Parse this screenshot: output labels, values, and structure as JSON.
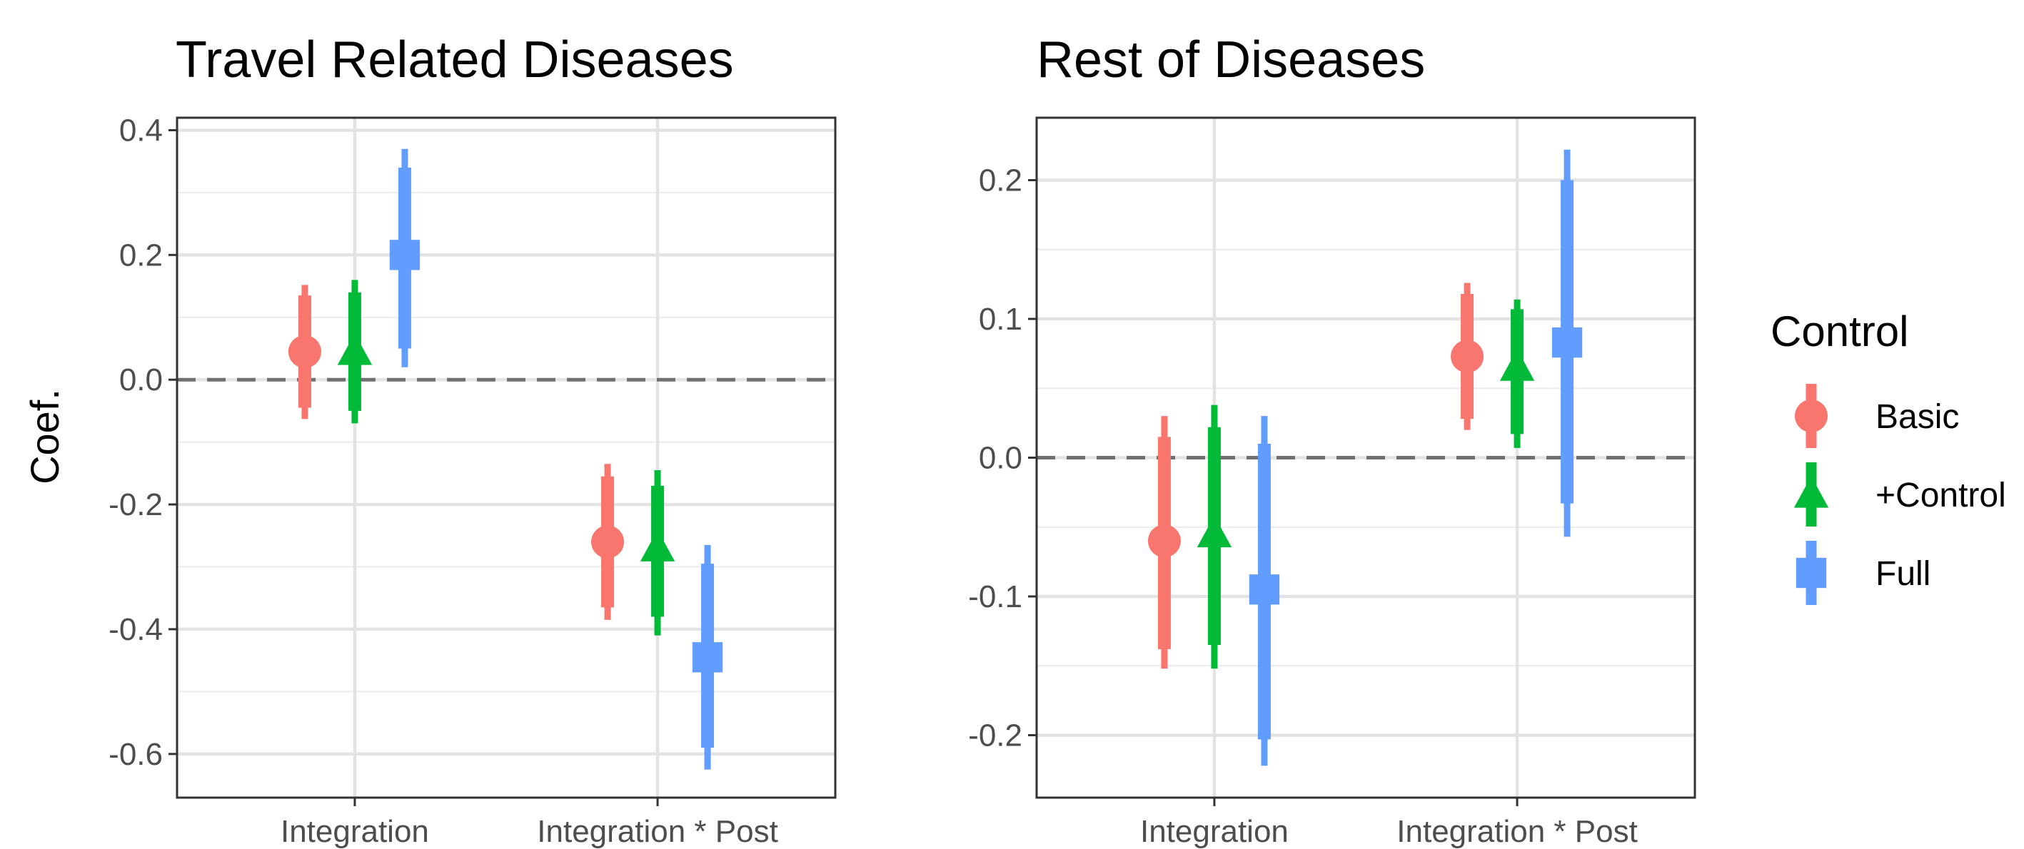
{
  "chart_data": [
    {
      "type": "scatter",
      "title": "Travel Related Diseases",
      "ylabel": "Coef.",
      "xlabel": "",
      "categories": [
        "Integration",
        "Integration * Post"
      ],
      "yticks": [
        0.4,
        0.2,
        -0.0,
        -0.2,
        -0.4,
        -0.6
      ],
      "ytick_labels": [
        "0.4",
        "0.2",
        "0.0",
        "-0.2",
        "-0.4",
        "-0.6"
      ],
      "ylim": [
        -0.67,
        0.42
      ],
      "reference_line": 0,
      "grid": true,
      "series": [
        {
          "name": "Basic",
          "color": "#F8766D",
          "marker": "circle",
          "estimate": [
            0.045,
            -0.26
          ],
          "inner_ci": [
            [
              -0.045,
              0.135
            ],
            [
              -0.365,
              -0.155
            ]
          ],
          "outer_ci": [
            [
              -0.063,
              0.152
            ],
            [
              -0.385,
              -0.135
            ]
          ]
        },
        {
          "name": "+Control",
          "color": "#00BA38",
          "marker": "triangle",
          "estimate": [
            0.045,
            -0.27
          ],
          "inner_ci": [
            [
              -0.05,
              0.14
            ],
            [
              -0.38,
              -0.17
            ]
          ],
          "outer_ci": [
            [
              -0.07,
              0.16
            ],
            [
              -0.41,
              -0.145
            ]
          ]
        },
        {
          "name": "Full",
          "color": "#619CFF",
          "marker": "square",
          "estimate": [
            0.2,
            -0.445
          ],
          "inner_ci": [
            [
              0.05,
              0.34
            ],
            [
              -0.59,
              -0.295
            ]
          ],
          "outer_ci": [
            [
              0.02,
              0.37
            ],
            [
              -0.625,
              -0.265
            ]
          ]
        }
      ]
    },
    {
      "type": "scatter",
      "title": "Rest of Diseases",
      "ylabel": "",
      "xlabel": "",
      "categories": [
        "Integration",
        "Integration * Post"
      ],
      "yticks": [
        0.2,
        0.1,
        0.0,
        -0.1,
        -0.2
      ],
      "ytick_labels": [
        "0.2",
        "0.1",
        "0.0",
        "-0.1",
        "-0.2"
      ],
      "ylim": [
        -0.245,
        0.245
      ],
      "reference_line": 0,
      "grid": true,
      "series": [
        {
          "name": "Basic",
          "color": "#F8766D",
          "marker": "circle",
          "estimate": [
            -0.06,
            0.073
          ],
          "inner_ci": [
            [
              -0.138,
              0.015
            ],
            [
              0.028,
              0.118
            ]
          ],
          "outer_ci": [
            [
              -0.152,
              0.03
            ],
            [
              0.02,
              0.126
            ]
          ]
        },
        {
          "name": "+Control",
          "color": "#00BA38",
          "marker": "triangle",
          "estimate": [
            -0.055,
            0.065
          ],
          "inner_ci": [
            [
              -0.135,
              0.022
            ],
            [
              0.017,
              0.107
            ]
          ],
          "outer_ci": [
            [
              -0.152,
              0.038
            ],
            [
              0.007,
              0.114
            ]
          ]
        },
        {
          "name": "Full",
          "color": "#619CFF",
          "marker": "square",
          "estimate": [
            -0.095,
            0.083
          ],
          "inner_ci": [
            [
              -0.203,
              0.01
            ],
            [
              -0.033,
              0.2
            ]
          ],
          "outer_ci": [
            [
              -0.222,
              0.03
            ],
            [
              -0.057,
              0.222
            ]
          ]
        }
      ]
    }
  ],
  "legend": {
    "title": "Control",
    "position": "right",
    "items": [
      {
        "label": "Basic",
        "color": "#F8766D",
        "marker": "circle"
      },
      {
        "label": "+Control",
        "color": "#00BA38",
        "marker": "triangle"
      },
      {
        "label": "Full",
        "color": "#619CFF",
        "marker": "square"
      }
    ]
  }
}
